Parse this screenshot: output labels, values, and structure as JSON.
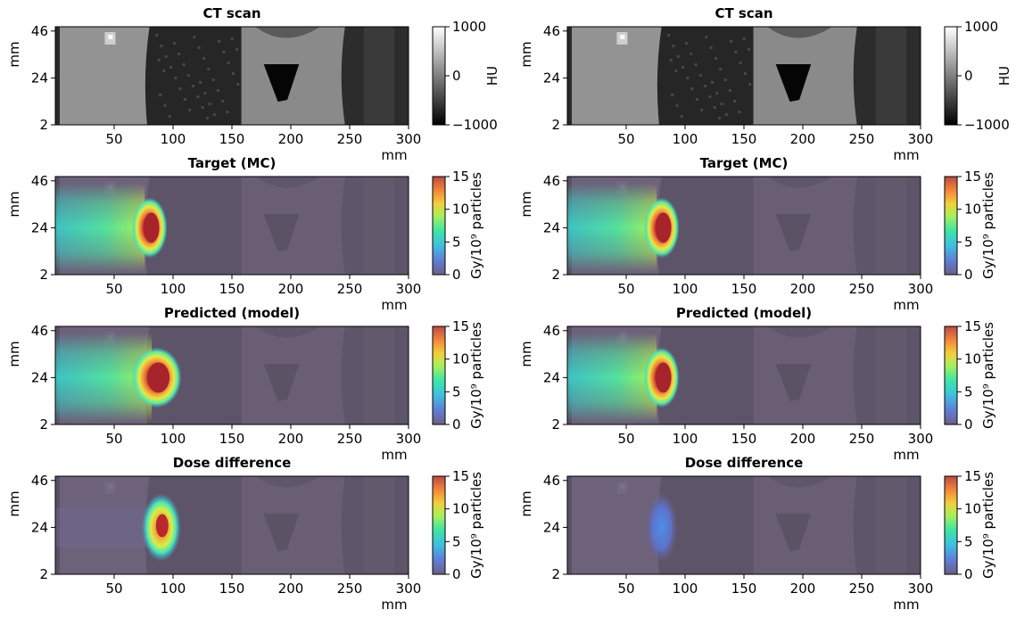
{
  "chart_data": {
    "type": "heatmap",
    "x_ticks": [
      50,
      100,
      150,
      200,
      250,
      300
    ],
    "y_ticks": [
      46,
      24,
      2
    ],
    "xlim": [
      0,
      300
    ],
    "ylim": [
      2,
      48
    ],
    "x_unit": "mm",
    "y_unit": "mm",
    "colormaps": {
      "ct": "gray",
      "dose": "turbo"
    },
    "panels": [
      {
        "title": "CT scan",
        "kind": "ct",
        "cbar_label": "HU",
        "cbar_ticks": [
          "1000",
          "0",
          "−1000"
        ],
        "clim": [
          -1000,
          1000
        ]
      },
      {
        "title": "Target (MC)",
        "kind": "dose",
        "cbar_label": "Gy/10⁹ particles",
        "cbar_ticks": [
          "15",
          "10",
          "5",
          "0"
        ],
        "clim": [
          0,
          15
        ],
        "dose_peak": {
          "x": 80,
          "y": 24,
          "value": 15
        },
        "dose_range_mm": 80
      },
      {
        "title": "Predicted (model)",
        "kind": "dose",
        "cbar_label": "Gy/10⁹ particles",
        "cbar_ticks": [
          "15",
          "10",
          "5",
          "0"
        ],
        "clim": [
          0,
          15
        ],
        "dose_peak_left": {
          "x": 86,
          "y": 24,
          "value": 15
        },
        "dose_peak_right": {
          "x": 80,
          "y": 24,
          "value": 15
        }
      },
      {
        "title": "Dose difference",
        "kind": "diff",
        "cbar_label": "Gy/10⁹ particles",
        "cbar_ticks": [
          "15",
          "10",
          "5",
          "0"
        ],
        "clim": [
          0,
          15
        ],
        "diff_peak_left": {
          "x": 90,
          "y": 24,
          "value": 15
        },
        "diff_peak_right": {
          "x": 80,
          "y": 24,
          "value": 5
        }
      }
    ]
  }
}
